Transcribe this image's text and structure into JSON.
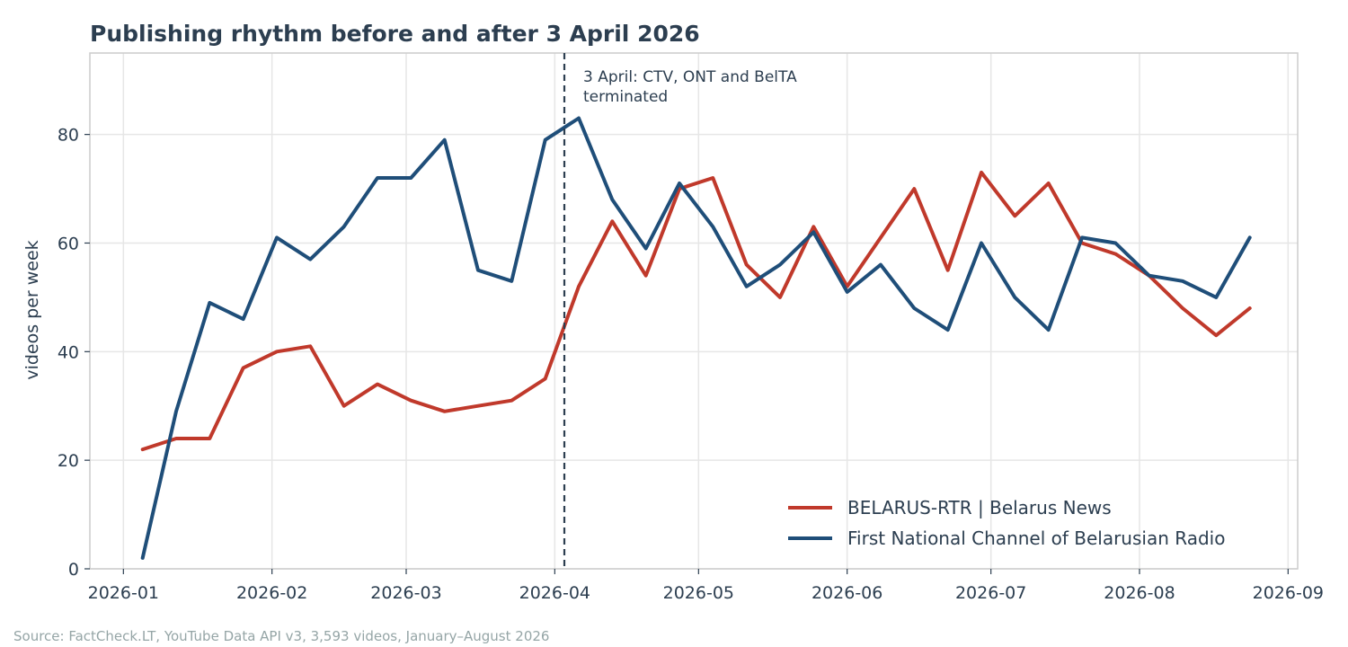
{
  "chart_data": {
    "type": "line",
    "title": "Publishing rhythm before and after 3 April 2026",
    "xlabel": "",
    "ylabel": "videos per week",
    "ylim": [
      0,
      95
    ],
    "yticks": [
      0,
      20,
      40,
      60,
      80
    ],
    "xlim": [
      "2025-12-25",
      "2026-09-03"
    ],
    "xticks": [
      "2026-01",
      "2026-02",
      "2026-03",
      "2026-04",
      "2026-05",
      "2026-06",
      "2026-07",
      "2026-08",
      "2026-09"
    ],
    "grid": true,
    "legend_position": "bottom-right",
    "x": [
      "2026-01-05",
      "2026-01-12",
      "2026-01-19",
      "2026-01-26",
      "2026-02-02",
      "2026-02-09",
      "2026-02-16",
      "2026-02-23",
      "2026-03-02",
      "2026-03-09",
      "2026-03-16",
      "2026-03-23",
      "2026-03-30",
      "2026-04-06",
      "2026-04-13",
      "2026-04-20",
      "2026-04-27",
      "2026-05-04",
      "2026-05-11",
      "2026-05-18",
      "2026-05-25",
      "2026-06-01",
      "2026-06-08",
      "2026-06-15",
      "2026-06-22",
      "2026-06-29",
      "2026-07-06",
      "2026-07-13",
      "2026-07-20",
      "2026-07-27",
      "2026-08-03",
      "2026-08-10",
      "2026-08-17",
      "2026-08-24"
    ],
    "series": [
      {
        "name": "BELARUS-RTR | Belarus News",
        "color": "#c0392b",
        "values": [
          22,
          24,
          24,
          37,
          40,
          41,
          30,
          34,
          31,
          29,
          30,
          31,
          35,
          52,
          64,
          54,
          70,
          72,
          56,
          50,
          63,
          52,
          61,
          70,
          55,
          73,
          65,
          71,
          60,
          58,
          54,
          48,
          43,
          48
        ]
      },
      {
        "name": "First National Channel of Belarusian Radio",
        "color": "#1f4e79",
        "values": [
          2,
          29,
          49,
          46,
          61,
          57,
          63,
          72,
          72,
          79,
          55,
          53,
          79,
          83,
          68,
          59,
          71,
          63,
          52,
          56,
          62,
          51,
          56,
          48,
          44,
          60,
          50,
          44,
          61,
          60,
          54,
          53,
          50,
          61
        ]
      }
    ],
    "annotations": [
      {
        "x": "2026-04-03",
        "style": "dashed",
        "color": "#2c3e50",
        "text_lines": [
          "3 April: CTV, ONT and BelTA",
          "terminated"
        ]
      }
    ]
  },
  "source_note": "Source: FactCheck.LT, YouTube Data API v3, 3,593 videos, January–August 2026",
  "colors": {
    "text": "#2c3e50",
    "grid": "#e6e6e6",
    "frame": "#cccccc",
    "source": "#95a5a6"
  }
}
